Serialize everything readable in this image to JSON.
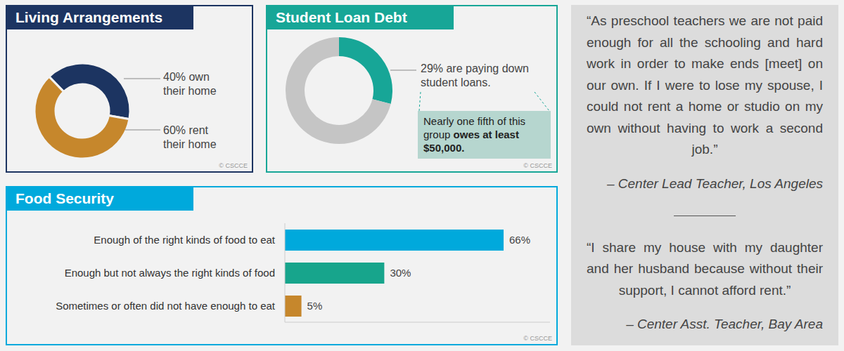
{
  "chart_data": [
    {
      "type": "pie",
      "title": "Living Arrangements",
      "categories": [
        "40% own their home",
        "60% rent their home"
      ],
      "values": [
        40,
        60
      ],
      "colors": [
        "#1c3461",
        "#c6872c"
      ],
      "source": "© CSCCE"
    },
    {
      "type": "pie",
      "title": "Student Loan Debt",
      "categories": [
        "29% are paying down student loans.",
        null
      ],
      "values": [
        29,
        71
      ],
      "colors": [
        "#17a697",
        "#c5c5c5"
      ],
      "annotation": {
        "text": "Nearly one fifth of this group ",
        "bold": "owes at least $50,000."
      },
      "source": "© CSCCE"
    },
    {
      "type": "bar",
      "orientation": "horizontal",
      "title": "Food Security",
      "categories": [
        "Enough of the right kinds of food to eat",
        "Enough but not always the right kinds of food",
        "Sometimes or often did not have enough to eat"
      ],
      "values": [
        66,
        30,
        5
      ],
      "value_labels": [
        "66%",
        "30%",
        "5%"
      ],
      "data_labels": true,
      "colors": [
        "#00a9dc",
        "#17a58c",
        "#c6872c"
      ],
      "xlim": [
        0,
        80
      ],
      "xticks": [],
      "tick_labels": "y",
      "source": "© CSCCE"
    }
  ],
  "quotes": [
    {
      "text": "“As preschool teachers we are not paid enough for all the schooling and hard work in order to make ends [meet] on our own. If I were to lose my spouse, I could not rent a home or studio on my own without having to work a second job.”",
      "attribution": "– Center Lead Teacher, Los Angeles"
    },
    {
      "text": "“I share my house with my daughter and her husband because without their support, I cannot afford rent.”",
      "attribution": "– Center Asst. Teacher, Bay Area"
    }
  ]
}
